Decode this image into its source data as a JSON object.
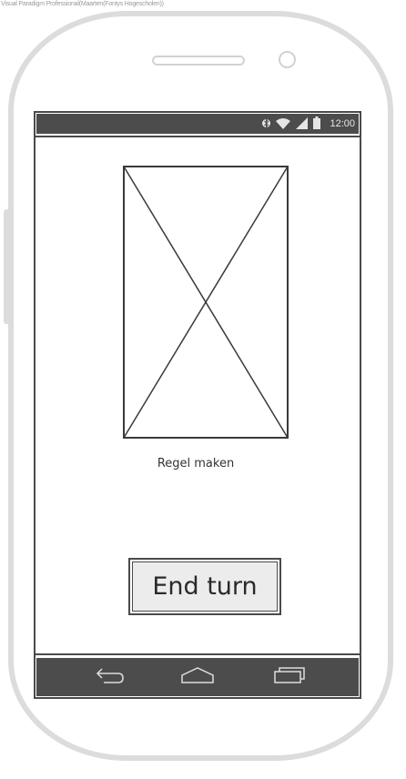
{
  "watermark": "Visual Paradigm Professional(Maarten(Fontys Hogescholen))",
  "status_bar": {
    "time": "12:00",
    "icons": [
      "bluetooth-icon",
      "wifi-icon",
      "signal-icon",
      "battery-icon"
    ]
  },
  "main": {
    "caption": "Regel maken",
    "end_turn_label": "End turn"
  },
  "nav_bar": {
    "buttons": [
      "back-icon",
      "home-icon",
      "recent-apps-icon"
    ]
  },
  "colors": {
    "bar_background": "#4c4c4c",
    "button_fill": "#ececec",
    "device_frame": "#dcdcdc"
  }
}
